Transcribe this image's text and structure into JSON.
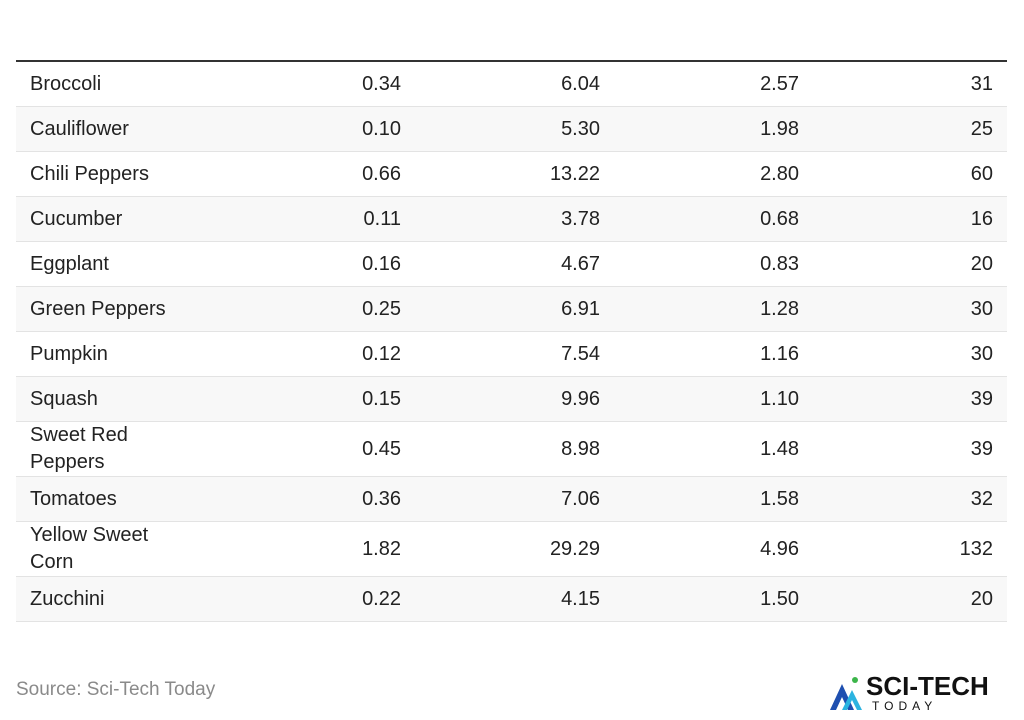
{
  "table": {
    "rows": [
      [
        "Broccoli",
        "0.34",
        "6.04",
        "2.57",
        "31"
      ],
      [
        "Cauliflower",
        "0.10",
        "5.30",
        "1.98",
        "25"
      ],
      [
        "Chili Peppers",
        "0.66",
        "13.22",
        "2.80",
        "60"
      ],
      [
        "Cucumber",
        "0.11",
        "3.78",
        "0.68",
        "16"
      ],
      [
        "Eggplant",
        "0.16",
        "4.67",
        "0.83",
        "20"
      ],
      [
        "Green Peppers",
        "0.25",
        "6.91",
        "1.28",
        "30"
      ],
      [
        "Pumpkin",
        "0.12",
        "7.54",
        "1.16",
        "30"
      ],
      [
        "Squash",
        "0.15",
        "9.96",
        "1.10",
        "39"
      ],
      [
        "Sweet Red Peppers",
        "0.45",
        "8.98",
        "1.48",
        "39"
      ],
      [
        "Tomatoes",
        "0.36",
        "7.06",
        "1.58",
        "32"
      ],
      [
        "Yellow Sweet Corn",
        "1.82",
        "29.29",
        "4.96",
        "132"
      ],
      [
        "Zucchini",
        "0.22",
        "4.15",
        "1.50",
        "20"
      ]
    ]
  },
  "footer": {
    "source": "Source: Sci-Tech Today",
    "logo_title": "SCI-TECH",
    "logo_subtitle": "TODAY"
  }
}
